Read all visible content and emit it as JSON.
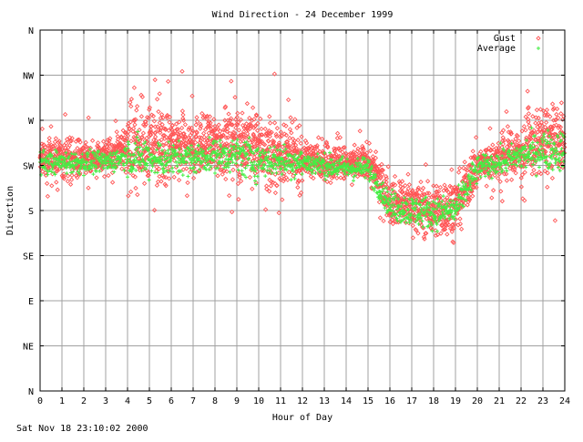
{
  "chart_data": {
    "type": "scatter",
    "title": "Wind Direction - 24 December 1999",
    "xlabel": "Hour of Day",
    "ylabel": "Direction",
    "x_ticks": [
      "0",
      "1",
      "2",
      "3",
      "4",
      "5",
      "6",
      "7",
      "8",
      "9",
      "10",
      "11",
      "12",
      "13",
      "14",
      "15",
      "16",
      "17",
      "18",
      "19",
      "20",
      "21",
      "22",
      "23",
      "24"
    ],
    "y_ticks": [
      "N",
      "NE",
      "E",
      "SE",
      "S",
      "SW",
      "W",
      "NW",
      "N"
    ],
    "xlim": [
      0,
      24
    ],
    "ylim_degrees": [
      0,
      360
    ],
    "grid": true,
    "legend_position": "top-right",
    "series": [
      {
        "name": "Gust",
        "marker": "diamond",
        "color": "#ff5555",
        "points_per_hour": 120,
        "hourly_mean_deg": [
          232,
          232,
          232,
          232,
          245,
          245,
          242,
          245,
          245,
          250,
          242,
          235,
          232,
          230,
          225,
          228,
          190,
          185,
          180,
          185,
          225,
          232,
          240,
          250
        ],
        "hourly_spread_deg": [
          14,
          16,
          16,
          16,
          34,
          32,
          26,
          26,
          28,
          32,
          28,
          26,
          14,
          16,
          14,
          18,
          20,
          22,
          24,
          22,
          16,
          20,
          26,
          30
        ]
      },
      {
        "name": "Average",
        "marker": "plus",
        "color": "#44ee44",
        "points_per_hour": 60,
        "hourly_mean_deg": [
          228,
          228,
          228,
          228,
          235,
          232,
          232,
          232,
          235,
          235,
          230,
          230,
          228,
          225,
          222,
          222,
          185,
          180,
          178,
          180,
          222,
          228,
          235,
          240
        ],
        "hourly_spread_deg": [
          10,
          10,
          10,
          10,
          18,
          16,
          14,
          14,
          14,
          18,
          14,
          14,
          10,
          10,
          10,
          10,
          14,
          14,
          14,
          14,
          10,
          12,
          16,
          18
        ]
      }
    ]
  },
  "footer": {
    "timestamp": "Sat Nov 18 23:10:02 2000"
  }
}
